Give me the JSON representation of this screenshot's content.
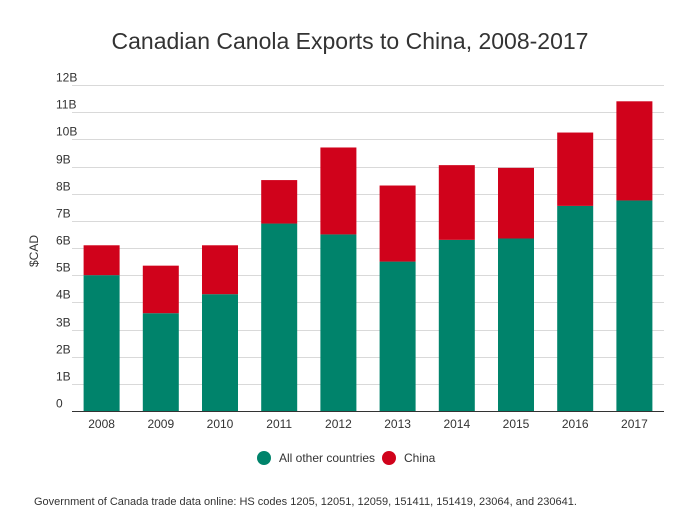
{
  "chart_data": {
    "type": "bar",
    "stacked": true,
    "title": "Canadian Canola Exports to China, 2008-2017",
    "xlabel": "",
    "ylabel": "$CAD",
    "ylim": [
      0,
      12
    ],
    "yticks": [
      "0",
      "1B",
      "2B",
      "3B",
      "4B",
      "5B",
      "6B",
      "7B",
      "8B",
      "9B",
      "10B",
      "11B",
      "12B"
    ],
    "categories": [
      "2008",
      "2009",
      "2010",
      "2011",
      "2012",
      "2013",
      "2014",
      "2015",
      "2016",
      "2017"
    ],
    "units": "billions CAD",
    "series": [
      {
        "name": "All other countries",
        "color": "#00836b",
        "values": [
          5.0,
          3.6,
          4.3,
          6.9,
          6.5,
          5.5,
          6.3,
          6.35,
          7.55,
          7.75
        ]
      },
      {
        "name": "China",
        "color": "#d0021b",
        "values": [
          1.1,
          1.75,
          1.8,
          1.6,
          3.2,
          2.8,
          2.75,
          2.6,
          2.7,
          3.65
        ]
      }
    ],
    "legend_position": "bottom-center"
  },
  "source_note": "Government of Canada trade data online: HS codes 1205, 12051, 12059, 151411, 151419, 23064, and 230641."
}
